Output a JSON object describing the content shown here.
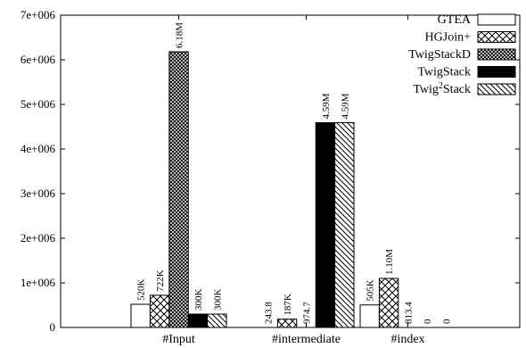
{
  "chart_data": {
    "type": "bar",
    "title": "",
    "xlabel": "",
    "ylabel": "",
    "ylim": [
      0,
      7000000
    ],
    "yticks": [
      "0",
      "1e+006",
      "2e+006",
      "3e+006",
      "4e+006",
      "5e+006",
      "6e+006",
      "7e+006"
    ],
    "categories": [
      "#Input",
      "#intermediate",
      "#index"
    ],
    "legend_position": "top-right",
    "series": [
      {
        "name": "GTEA",
        "pattern": "white",
        "values": [
          520000,
          243.8,
          505000
        ],
        "labels": [
          "520K",
          "243.8",
          "505K"
        ]
      },
      {
        "name": "HGJoin+",
        "pattern": "crosshatch",
        "values": [
          722000,
          187000,
          1100000
        ],
        "labels": [
          "722K",
          "187K",
          "1.10M"
        ]
      },
      {
        "name": "TwigStackD",
        "pattern": "dense-crosshatch",
        "values": [
          6180000,
          974.7,
          813.4
        ],
        "labels": [
          "6.18M",
          "974.7",
          "813.4"
        ]
      },
      {
        "name": "TwigStack",
        "pattern": "black",
        "values": [
          300000,
          4590000,
          0
        ],
        "labels": [
          "300K",
          "4.59M",
          "0"
        ]
      },
      {
        "name": "Twig²Stack",
        "pattern": "diagonal",
        "values": [
          300000,
          4590000,
          0
        ],
        "labels": [
          "300K",
          "4.59M",
          "0"
        ]
      }
    ]
  }
}
